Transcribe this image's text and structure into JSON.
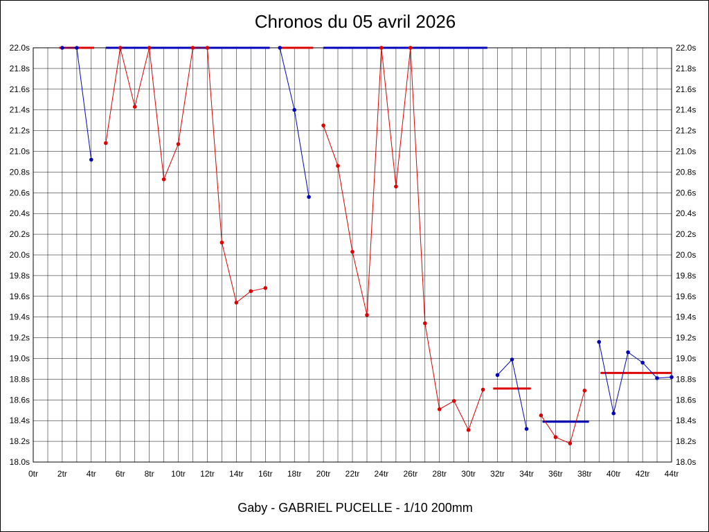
{
  "chart_data": {
    "type": "line",
    "title": "Chronos du 05 avril 2026",
    "caption": "Gaby - GABRIEL PUCELLE - 1/10 200mm",
    "x_unit": "tr",
    "y_unit": "s",
    "xlim": [
      0,
      44
    ],
    "ylim": [
      18.0,
      22.0
    ],
    "x_grid_step": 1,
    "x_label_step": 2,
    "y_grid_step": 0.2,
    "grid": true,
    "legend": "none",
    "y_ticks": [
      "22.0s",
      "21.8s",
      "21.6s",
      "21.4s",
      "21.2s",
      "21.0s",
      "20.8s",
      "20.6s",
      "20.4s",
      "20.2s",
      "20.0s",
      "19.8s",
      "19.6s",
      "19.4s",
      "19.2s",
      "19.0s",
      "18.8s",
      "18.6s",
      "18.4s",
      "18.2s",
      "18.0s"
    ],
    "x_ticks": [
      "0tr",
      "2tr",
      "4tr",
      "6tr",
      "8tr",
      "10tr",
      "12tr",
      "14tr",
      "16tr",
      "18tr",
      "20tr",
      "22tr",
      "24tr",
      "26tr",
      "28tr",
      "30tr",
      "32tr",
      "34tr",
      "36tr",
      "38tr",
      "40tr",
      "42tr",
      "44tr"
    ],
    "colors": {
      "red": "#dd0000",
      "blue": "#0000bb",
      "grid": "#000000",
      "axis": "#000000"
    },
    "series": [
      {
        "name": "stint-1",
        "driver_color": "blue",
        "points": [
          [
            2,
            22.0
          ],
          [
            3,
            22.0
          ],
          [
            4,
            20.92
          ]
        ]
      },
      {
        "name": "stint-2",
        "driver_color": "red",
        "points": [
          [
            5,
            21.08
          ],
          [
            6,
            22.0
          ],
          [
            7,
            21.43
          ],
          [
            8,
            22.0
          ],
          [
            9,
            20.73
          ],
          [
            10,
            21.07
          ],
          [
            11,
            22.0
          ],
          [
            12,
            22.0
          ],
          [
            13,
            20.12
          ],
          [
            14,
            19.54
          ],
          [
            15,
            19.65
          ],
          [
            16,
            19.68
          ]
        ]
      },
      {
        "name": "stint-3",
        "driver_color": "blue",
        "points": [
          [
            17,
            22.0
          ],
          [
            18,
            21.4
          ],
          [
            19,
            20.56
          ]
        ]
      },
      {
        "name": "stint-4",
        "driver_color": "red",
        "points": [
          [
            20,
            21.25
          ],
          [
            21,
            20.86
          ],
          [
            22,
            20.03
          ],
          [
            23,
            19.42
          ],
          [
            24,
            22.0
          ],
          [
            25,
            20.66
          ],
          [
            26,
            22.0
          ],
          [
            27,
            19.34
          ],
          [
            28,
            18.51
          ],
          [
            29,
            18.59
          ],
          [
            30,
            18.31
          ],
          [
            31,
            18.7
          ]
        ]
      },
      {
        "name": "stint-5",
        "driver_color": "blue",
        "points": [
          [
            32,
            18.84
          ],
          [
            33,
            18.99
          ],
          [
            34,
            18.32
          ]
        ]
      },
      {
        "name": "stint-6",
        "driver_color": "red",
        "points": [
          [
            35,
            18.45
          ],
          [
            36,
            18.24
          ],
          [
            37,
            18.18
          ],
          [
            38,
            18.69
          ]
        ]
      },
      {
        "name": "stint-7",
        "driver_color": "blue",
        "points": [
          [
            39,
            19.16
          ],
          [
            40,
            18.47
          ],
          [
            41,
            19.06
          ],
          [
            42,
            18.96
          ],
          [
            43,
            18.81
          ],
          [
            44,
            18.82
          ]
        ]
      }
    ],
    "average_lines": [
      {
        "color": "red",
        "value": 22.0,
        "from_lap": 1.8,
        "to_lap": 4.2
      },
      {
        "color": "blue",
        "value": 22.0,
        "from_lap": 5.0,
        "to_lap": 16.3
      },
      {
        "color": "red",
        "value": 22.0,
        "from_lap": 17.0,
        "to_lap": 19.3
      },
      {
        "color": "blue",
        "value": 22.0,
        "from_lap": 20.0,
        "to_lap": 31.3
      },
      {
        "color": "red",
        "value": 18.71,
        "from_lap": 31.7,
        "to_lap": 34.3
      },
      {
        "color": "blue",
        "value": 18.39,
        "from_lap": 35.1,
        "to_lap": 38.3
      },
      {
        "color": "red",
        "value": 18.86,
        "from_lap": 39.1,
        "to_lap": 44.0
      }
    ]
  }
}
